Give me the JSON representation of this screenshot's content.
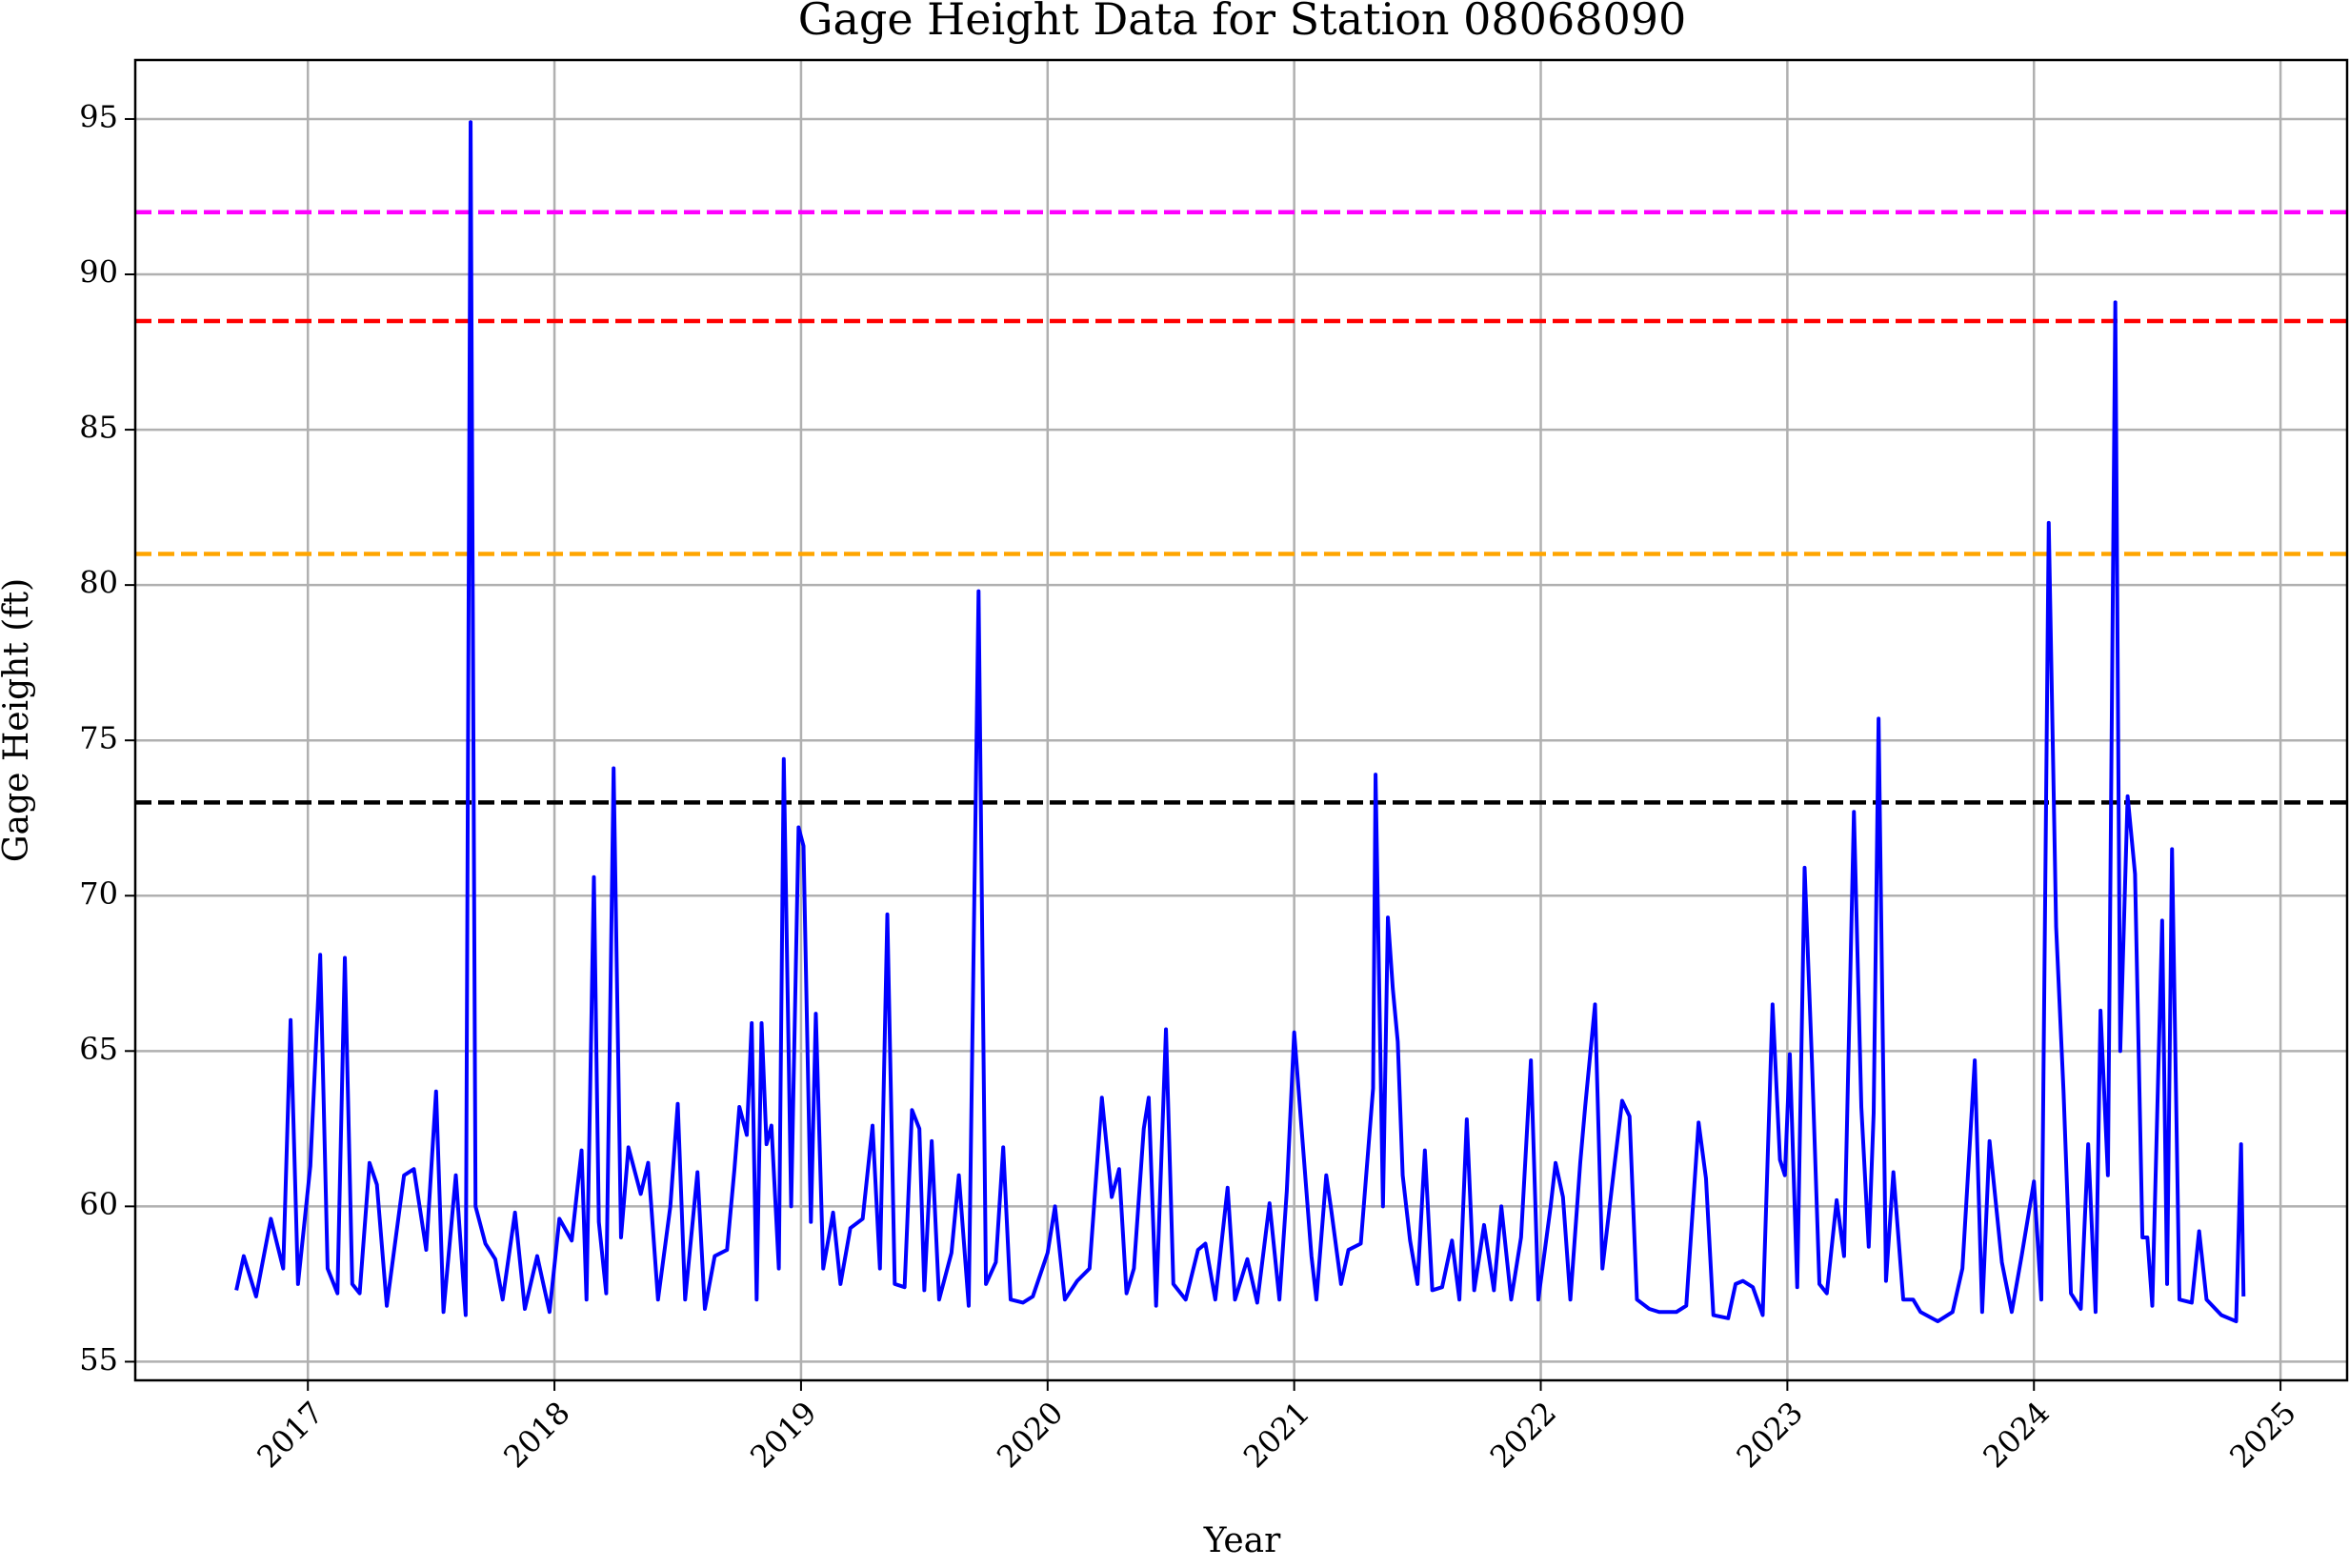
{
  "chart_data": {
    "type": "line",
    "title": "Gage Height Data for Station 08068090",
    "xlabel": "Year",
    "ylabel": "Gage Height (ft)",
    "color": "#0000ff",
    "x": [
      2016.71,
      2016.74,
      2016.79,
      2016.85,
      2016.9,
      2016.93,
      2016.96,
      2017.01,
      2017.05,
      2017.08,
      2017.12,
      2017.15,
      2017.18,
      2017.21,
      2017.25,
      2017.28,
      2017.32,
      2017.39,
      2017.43,
      2017.48,
      2017.52,
      2017.55,
      2017.6,
      2017.64,
      2017.66,
      2017.68,
      2017.72,
      2017.76,
      2017.79,
      2017.84,
      2017.88,
      2017.93,
      2017.98,
      2018.02,
      2018.07,
      2018.11,
      2018.13,
      2018.16,
      2018.18,
      2018.21,
      2018.24,
      2018.27,
      2018.3,
      2018.35,
      2018.38,
      2018.42,
      2018.47,
      2018.5,
      2018.53,
      2018.58,
      2018.61,
      2018.65,
      2018.7,
      2018.73,
      2018.75,
      2018.78,
      2018.8,
      2018.82,
      2018.84,
      2018.86,
      2018.88,
      2018.91,
      2018.93,
      2018.96,
      2018.99,
      2019.01,
      2019.04,
      2019.06,
      2019.09,
      2019.13,
      2019.16,
      2019.2,
      2019.25,
      2019.29,
      2019.32,
      2019.35,
      2019.38,
      2019.42,
      2019.45,
      2019.48,
      2019.5,
      2019.53,
      2019.56,
      2019.61,
      2019.64,
      2019.68,
      2019.72,
      2019.75,
      2019.79,
      2019.82,
      2019.85,
      2019.9,
      2019.94,
      2020.0,
      2020.03,
      2020.07,
      2020.12,
      2020.17,
      2020.22,
      2020.26,
      2020.29,
      2020.32,
      2020.35,
      2020.39,
      2020.41,
      2020.44,
      2020.48,
      2020.51,
      2020.56,
      2020.61,
      2020.64,
      2020.68,
      2020.73,
      2020.76,
      2020.81,
      2020.85,
      2020.9,
      2020.94,
      2020.97,
      2021.0,
      2021.03,
      2021.07,
      2021.09,
      2021.13,
      2021.15,
      2021.19,
      2021.22,
      2021.27,
      2021.32,
      2021.33,
      2021.36,
      2021.38,
      2021.4,
      2021.42,
      2021.44,
      2021.47,
      2021.5,
      2021.53,
      2021.56,
      2021.6,
      2021.64,
      2021.67,
      2021.7,
      2021.73,
      2021.77,
      2021.81,
      2021.84,
      2021.88,
      2021.92,
      2021.96,
      2021.99,
      2022.04,
      2022.06,
      2022.09,
      2022.12,
      2022.16,
      2022.18,
      2022.22,
      2022.25,
      2022.3,
      2022.33,
      2022.36,
      2022.39,
      2022.44,
      2022.48,
      2022.55,
      2022.59,
      2022.64,
      2022.67,
      2022.7,
      2022.76,
      2022.79,
      2022.82,
      2022.86,
      2022.9,
      2022.94,
      2022.97,
      2022.99,
      2023.01,
      2023.04,
      2023.07,
      2023.1,
      2023.13,
      2023.16,
      2023.2,
      2023.23,
      2023.27,
      2023.3,
      2023.33,
      2023.35,
      2023.37,
      2023.4,
      2023.43,
      2023.47,
      2023.51,
      2023.54,
      2023.61,
      2023.67,
      2023.71,
      2023.76,
      2023.79,
      2023.82,
      2023.87,
      2023.91,
      2023.95,
      2024.0,
      2024.03,
      2024.06,
      2024.09,
      2024.12,
      2024.15,
      2024.19,
      2024.22,
      2024.25,
      2024.27,
      2024.3,
      2024.33,
      2024.35,
      2024.38,
      2024.41,
      2024.44,
      2024.46,
      2024.48,
      2024.52,
      2024.54,
      2024.56,
      2024.59,
      2024.64,
      2024.67,
      2024.7,
      2024.76,
      2024.82,
      2024.84,
      2024.85
    ],
    "values": [
      57.3,
      58.4,
      57.1,
      59.6,
      58.0,
      66,
      57.5,
      61.3,
      68.1,
      58,
      57.2,
      68,
      57.5,
      57.2,
      61.4,
      60.7,
      56.8,
      61,
      61.2,
      58.6,
      63.7,
      56.6,
      61,
      56.5,
      94.9,
      60,
      58.8,
      58.3,
      57,
      59.8,
      56.7,
      58.4,
      56.6,
      59.6,
      58.9,
      61.8,
      57,
      70.6,
      59.5,
      57.2,
      74.1,
      59,
      61.9,
      60.4,
      61.4,
      57,
      60,
      63.3,
      57,
      61.1,
      56.7,
      58.4,
      58.6,
      61.2,
      63.2,
      62.3,
      65.9,
      57,
      65.9,
      62,
      62.6,
      58,
      74.4,
      60,
      72.2,
      71.6,
      59.5,
      66.2,
      58,
      59.8,
      57.5,
      59.3,
      59.6,
      62.6,
      58,
      69.4,
      57.5,
      57.4,
      63.1,
      62.5,
      57.3,
      62.1,
      57,
      58.5,
      61,
      56.8,
      79.8,
      57.5,
      58.2,
      61.9,
      57,
      56.9,
      57.1,
      58.5,
      60,
      57,
      57.6,
      58,
      63.5,
      60.3,
      61.2,
      57.2,
      58,
      62.5,
      63.5,
      56.8,
      65.7,
      57.5,
      57,
      58.6,
      58.8,
      57,
      60.6,
      57,
      58.3,
      56.9,
      60.1,
      57,
      60.5,
      65.6,
      62.5,
      58.4,
      57,
      61,
      59.9,
      57.5,
      58.6,
      58.8,
      63.8,
      73.9,
      60,
      69.3,
      67,
      65.3,
      61,
      58.9,
      57.5,
      61.8,
      57.3,
      57.4,
      58.9,
      57,
      62.8,
      57.3,
      59.4,
      57.3,
      60,
      57,
      59,
      64.7,
      57,
      60,
      61.4,
      60.3,
      57,
      61.4,
      63.2,
      66.5,
      58,
      61.4,
      63.4,
      62.9,
      57,
      56.7,
      56.6,
      56.6,
      56.8,
      62.7,
      60.9,
      56.5,
      56.4,
      57.5,
      57.6,
      57.4,
      56.5,
      66.5,
      61.5,
      61,
      64.9,
      57.4,
      70.9,
      64.6,
      57.5,
      57.2,
      60.2,
      58.4,
      72.7,
      63.2,
      58.7,
      63,
      75.7,
      57.6,
      61.1,
      57,
      57,
      56.6,
      56.3,
      56.6,
      58.0,
      64.7,
      56.6,
      62.1,
      58.2,
      56.6,
      58.4,
      60.8,
      57,
      82,
      69,
      63.7,
      57.2,
      56.7,
      62,
      56.6,
      66.3,
      61,
      89.1,
      65,
      73.2,
      70.7,
      59,
      59,
      56.8,
      69.2,
      57.5,
      71.5,
      57,
      56.9,
      59.2,
      57,
      56.5,
      56.3,
      62,
      57.1
    ],
    "hlines": [
      {
        "value": 92,
        "color": "#ff00ff"
      },
      {
        "value": 88.5,
        "color": "#ff0000"
      },
      {
        "value": 81,
        "color": "#ffa500"
      },
      {
        "value": 73,
        "color": "#000000"
      }
    ],
    "xlim": [
      2016.3,
      2025.27
    ],
    "ylim": [
      54.4,
      96.9
    ],
    "xticks": [
      2017,
      2018,
      2019,
      2020,
      2021,
      2022,
      2023,
      2024,
      2025
    ],
    "yticks": [
      55,
      60,
      65,
      70,
      75,
      80,
      85,
      90,
      95
    ],
    "grid": true
  }
}
